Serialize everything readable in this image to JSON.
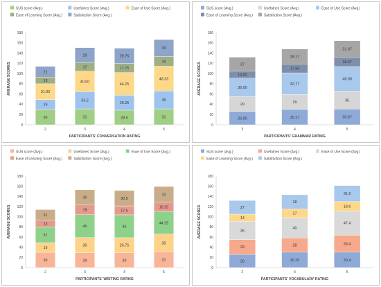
{
  "chart_data": [
    {
      "type": "bar",
      "stacked": true,
      "xlabel": "PARTICIPANTS' CONVERSATION RATING",
      "ylabel": "AVERAGE SCORES",
      "ylim": [
        0,
        180
      ],
      "yticks": [
        0,
        20,
        40,
        60,
        80,
        100,
        120,
        140,
        160,
        180
      ],
      "grid": false,
      "legend_position": "top",
      "categories": [
        "2",
        "3",
        "4",
        "5"
      ],
      "series": [
        {
          "name": "SUS score (Avg.)",
          "color": "#9fce84",
          "values": [
            30,
            31,
            28.5,
            31
          ],
          "labels": [
            "30",
            "31",
            "28.5",
            "31"
          ]
        },
        {
          "name": "Usefulnes Score (Avg.)",
          "color": "#9ec3ee",
          "values": [
            19,
            33.5,
            29.25,
            35
          ],
          "labels": [
            "19",
            "33.5",
            "29.25",
            "35"
          ]
        },
        {
          "name": "Ease of Use Score (Avg.)",
          "color": "#fdd889",
          "values": [
            31,
            40,
            44.25,
            48.33
          ],
          "labels": [
            "31.00",
            "40.00",
            "44.25",
            "48.33"
          ]
        },
        {
          "name": "Ease of Learning Score (Avg.)",
          "color": "#9fae84",
          "values": [
            13,
            17,
            17.75,
            19
          ],
          "labels": [
            "13",
            "17",
            "17.75",
            "19"
          ]
        },
        {
          "name": "Satisfaction Score (Avg.)",
          "color": "#8ea4c8",
          "values": [
            21,
            29,
            29.75,
            33
          ],
          "labels": [
            "21",
            "29",
            "29.75",
            "33"
          ]
        }
      ]
    },
    {
      "type": "bar",
      "stacked": true,
      "xlabel": "PARTICIPANTS' GRAMMAR RATING",
      "ylabel": "AVERAGE SCORES",
      "ylim": [
        0,
        180
      ],
      "yticks": [
        0,
        20,
        40,
        60,
        80,
        100,
        120,
        140,
        160,
        180
      ],
      "grid": false,
      "legend_position": "top",
      "categories": [
        "3",
        "4",
        "5"
      ],
      "series": [
        {
          "name": "SUS score (Avg.)",
          "color": "#8faad7",
          "values": [
            26,
            30.17,
            30.67
          ],
          "labels": [
            "26.00",
            "30.17",
            "30.67"
          ]
        },
        {
          "name": "Usefulnes Score (Avg.)",
          "color": "#d6d6d6",
          "values": [
            29,
            29,
            35
          ],
          "labels": [
            "29",
            "29",
            "35"
          ]
        },
        {
          "name": "Ease of Use Score (Avg.)",
          "color": "#a8c8ec",
          "values": [
            36,
            42.17,
            48
          ],
          "labels": [
            "36.00",
            "42.17",
            "48.00"
          ]
        },
        {
          "name": "Ease of Learning Score (Avg.)",
          "color": "#7f8fa9",
          "values": [
            14,
            17.5,
            18.67
          ],
          "labels": [
            "14.00",
            "17.50",
            "18.67"
          ]
        },
        {
          "name": "Satisfaction Score (Avg.)",
          "color": "#a6a6a6",
          "values": [
            27,
            29.17,
            31.67
          ],
          "labels": [
            "27",
            "29.17",
            "31.67"
          ]
        }
      ]
    },
    {
      "type": "bar",
      "stacked": true,
      "xlabel": "PARTICIPANTS' WRITING RATING",
      "ylabel": "AVERAGE SCORES",
      "ylim": [
        0,
        180
      ],
      "yticks": [
        0,
        20,
        40,
        60,
        80,
        100,
        120,
        140,
        160,
        180
      ],
      "grid": false,
      "legend_position": "top",
      "categories": [
        "2",
        "3",
        "4",
        "5"
      ],
      "series": [
        {
          "name": "SUS score (Avg.)",
          "color": "#f8b597",
          "values": [
            30,
            29,
            29,
            31
          ],
          "labels": [
            "30",
            "29",
            "29",
            "31"
          ]
        },
        {
          "name": "Usefulnes Score (Avg.)",
          "color": "#fdd38a",
          "values": [
            19,
            30,
            29.75,
            35
          ],
          "labels": [
            "19",
            "30",
            "29.75",
            "35"
          ]
        },
        {
          "name": "Ease of Use Score (Avg.)",
          "color": "#8fd18a",
          "values": [
            31,
            45,
            45,
            44.25
          ],
          "labels": [
            "31",
            "45",
            "45",
            "44.25"
          ]
        },
        {
          "name": "Ease of Learning Score (Avg.)",
          "color": "#e59a8e",
          "values": [
            13,
            19,
            17.5,
            18.25
          ],
          "labels": [
            "13",
            "19",
            "17.5",
            "18.25"
          ]
        },
        {
          "name": "Satisfaction Score (Avg.)",
          "color": "#c9ad8a",
          "values": [
            21,
            30,
            30.5,
            31
          ],
          "labels": [
            "21",
            "30",
            "30.5",
            "31"
          ]
        }
      ]
    },
    {
      "type": "bar",
      "stacked": true,
      "xlabel": "PARTICIPANTS' VOCABULARY RATING",
      "ylabel": "AVERAGE SCORES",
      "ylim": [
        0,
        180
      ],
      "yticks": [
        0,
        20,
        40,
        60,
        80,
        100,
        120,
        140,
        160,
        180
      ],
      "grid": false,
      "legend_position": "top",
      "categories": [
        "2",
        "4",
        "5"
      ],
      "series": [
        {
          "name": "SUS score (Avg.)",
          "color": "#8faad7",
          "values": [
            26,
            30.25,
            30.4
          ],
          "labels": [
            "26",
            "30.25",
            "30.4"
          ]
        },
        {
          "name": "Usefulnes Score (Avg.)",
          "color": "#f6a98c",
          "values": [
            29,
            28,
            33.4
          ],
          "labels": [
            "29",
            "28",
            "33.4"
          ]
        },
        {
          "name": "Ease of Use Score (Avg.)",
          "color": "#d9d9d9",
          "values": [
            36,
            40,
            47.4
          ],
          "labels": [
            "36",
            "40",
            "47.4"
          ]
        },
        {
          "name": "Ease of Learning Score (Avg.)",
          "color": "#fdd889",
          "values": [
            14,
            17,
            18.6
          ],
          "labels": [
            "14",
            "17",
            "18.6"
          ]
        },
        {
          "name": "Satisfaction Score (Avg.)",
          "color": "#a8c8ec",
          "values": [
            27,
            28,
            31.6
          ],
          "labels": [
            "27",
            "28",
            "31.6"
          ]
        }
      ]
    }
  ]
}
